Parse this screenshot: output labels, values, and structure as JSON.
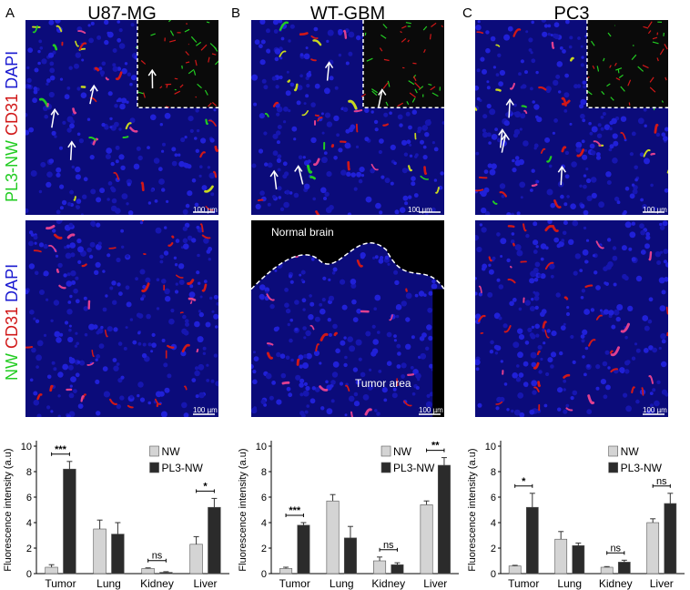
{
  "panels": [
    {
      "letter": "A",
      "title": "U87-MG"
    },
    {
      "letter": "B",
      "title": "WT-GBM"
    },
    {
      "letter": "C",
      "title": "PC3"
    }
  ],
  "row_labels": {
    "top": {
      "a": "PL3-NW",
      "b": "CD31",
      "c": "DAPI"
    },
    "bottom": {
      "a": "NW",
      "b": "CD31",
      "c": "DAPI"
    }
  },
  "colors": {
    "green": "#22cc22",
    "red": "#d11818",
    "blue": "#1a1ad0",
    "white": "#ffffff"
  },
  "scale_bar": "100 µm",
  "regions": {
    "normal": "Normal brain",
    "tumor": "Tumor area"
  },
  "legend": {
    "nw": "NW",
    "pl3": "PL3-NW"
  },
  "chart_data": [
    {
      "type": "bar",
      "categories": [
        "Tumor",
        "Lung",
        "Kidney",
        "Liver"
      ],
      "ylabel": "Fluorescence intensity (a.u)",
      "ylim": [
        0,
        10
      ],
      "yticks": [
        "0",
        "2",
        "4",
        "6",
        "8",
        "10"
      ],
      "series": [
        {
          "name": "NW",
          "values": [
            0.5,
            3.5,
            0.4,
            2.3
          ],
          "errors": [
            0.2,
            0.7,
            0.05,
            0.6
          ]
        },
        {
          "name": "PL3-NW",
          "values": [
            8.2,
            3.1,
            0.1,
            5.2
          ],
          "errors": [
            0.6,
            0.9,
            0.05,
            0.7
          ]
        }
      ],
      "significance": [
        "***",
        "",
        "ns",
        "*"
      ]
    },
    {
      "type": "bar",
      "categories": [
        "Tumor",
        "Lung",
        "Kidney",
        "Liver"
      ],
      "ylabel": "Fluorescence intensity (a.u)",
      "ylim": [
        0,
        10
      ],
      "yticks": [
        "0",
        "2",
        "4",
        "6",
        "8",
        "10"
      ],
      "series": [
        {
          "name": "NW",
          "values": [
            0.4,
            5.7,
            1.0,
            5.4
          ],
          "errors": [
            0.1,
            0.5,
            0.3,
            0.3
          ]
        },
        {
          "name": "PL3-NW",
          "values": [
            3.8,
            2.8,
            0.7,
            8.5
          ],
          "errors": [
            0.2,
            0.9,
            0.15,
            0.6
          ]
        }
      ],
      "significance": [
        "***",
        "",
        "ns",
        "**"
      ]
    },
    {
      "type": "bar",
      "categories": [
        "Tumor",
        "Lung",
        "Kidney",
        "Liver"
      ],
      "ylabel": "Fluorescence intensity (a.u)",
      "ylim": [
        0,
        10
      ],
      "yticks": [
        "0",
        "2",
        "4",
        "6",
        "8",
        "10"
      ],
      "series": [
        {
          "name": "NW",
          "values": [
            0.6,
            2.7,
            0.5,
            4.0
          ],
          "errors": [
            0.05,
            0.6,
            0.05,
            0.3
          ]
        },
        {
          "name": "PL3-NW",
          "values": [
            5.2,
            2.2,
            0.9,
            5.5
          ],
          "errors": [
            1.1,
            0.2,
            0.15,
            0.8
          ]
        }
      ],
      "significance": [
        "*",
        "",
        "ns",
        "ns"
      ]
    }
  ]
}
